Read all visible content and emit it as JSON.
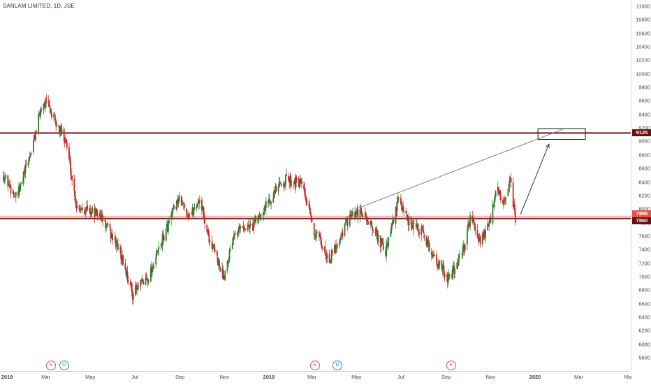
{
  "header": {
    "symbol_title": "SANLAM LIMITED, 1D, JSE"
  },
  "colors": {
    "up_candle": "#2e7d32",
    "down_candle": "#c62828",
    "resistance_line": "#7a1a1a",
    "support_line": "#7a1a1a",
    "label_9125": "#6b1111",
    "label_7895": "#e0564b",
    "label_7860": "#6b1111"
  },
  "price_axis": {
    "ticks": [
      "11000",
      "10800",
      "10600",
      "10400",
      "10200",
      "10000",
      "9800",
      "9600",
      "9400",
      "9200",
      "9000",
      "8800",
      "8600",
      "8400",
      "8200",
      "8000",
      "7800",
      "7600",
      "7400",
      "7200",
      "7000",
      "6800",
      "6600",
      "6400",
      "6200",
      "6000",
      "5800"
    ],
    "labels": [
      {
        "text": "9125",
        "price": 9125,
        "color": "#6b1111"
      },
      {
        "text": "7895",
        "price": 7895,
        "color": "#e0564b"
      },
      {
        "text": "7860",
        "price": 7860,
        "color": "#6b1111"
      }
    ]
  },
  "time_axis": {
    "ticks": [
      "2018",
      "Mar",
      "May",
      "Jul",
      "Sep",
      "Nov",
      "2019",
      "Mar",
      "May",
      "Jul",
      "Sep",
      "Nov",
      "2020",
      "Mar",
      "Ma"
    ]
  },
  "events": [
    {
      "type": "E",
      "icon": "earnings-icon"
    },
    {
      "type": "D",
      "icon": "dividend-icon"
    },
    {
      "type": "E",
      "icon": "earnings-icon"
    },
    {
      "type": "D",
      "icon": "dividend-icon"
    },
    {
      "type": "E",
      "icon": "earnings-icon"
    }
  ],
  "chart_data": {
    "type": "candlestick",
    "title": "SANLAM LIMITED, 1D, JSE",
    "ylim": [
      5800,
      11000
    ],
    "horizontal_levels": [
      9125,
      7895,
      7860
    ],
    "price_path_keypoints": [
      [
        "2018-01-02",
        8500
      ],
      [
        "2018-01-20",
        8150
      ],
      [
        "2018-02-10",
        8900
      ],
      [
        "2018-02-25",
        9600
      ],
      [
        "2018-03-05",
        9500
      ],
      [
        "2018-03-15",
        9250
      ],
      [
        "2018-03-28",
        9050
      ],
      [
        "2018-04-12",
        8050
      ],
      [
        "2018-04-25",
        8000
      ],
      [
        "2018-05-15",
        7900
      ],
      [
        "2018-06-10",
        7400
      ],
      [
        "2018-06-28",
        6750
      ],
      [
        "2018-07-20",
        7000
      ],
      [
        "2018-08-10",
        7600
      ],
      [
        "2018-08-30",
        8150
      ],
      [
        "2018-09-15",
        7900
      ],
      [
        "2018-09-28",
        8150
      ],
      [
        "2018-10-10",
        7600
      ],
      [
        "2018-10-31",
        7000
      ],
      [
        "2018-11-15",
        7700
      ],
      [
        "2018-12-10",
        7750
      ],
      [
        "2019-01-05",
        8200
      ],
      [
        "2019-01-25",
        8450
      ],
      [
        "2019-02-15",
        8350
      ],
      [
        "2019-03-05",
        7650
      ],
      [
        "2019-03-25",
        7250
      ],
      [
        "2019-04-20",
        7850
      ],
      [
        "2019-05-08",
        7950
      ],
      [
        "2019-05-25",
        7700
      ],
      [
        "2019-06-10",
        7350
      ],
      [
        "2019-06-28",
        8150
      ],
      [
        "2019-07-10",
        7850
      ],
      [
        "2019-07-30",
        7650
      ],
      [
        "2019-08-15",
        7300
      ],
      [
        "2019-09-05",
        6950
      ],
      [
        "2019-09-25",
        7400
      ],
      [
        "2019-10-05",
        7950
      ],
      [
        "2019-10-15",
        7500
      ],
      [
        "2019-10-30",
        7750
      ],
      [
        "2019-11-10",
        8300
      ],
      [
        "2019-11-20",
        8050
      ],
      [
        "2019-11-28",
        8400
      ],
      [
        "2019-12-05",
        7860
      ]
    ],
    "annotations": {
      "target_box_price_range": [
        9030,
        9190
      ],
      "trendline_from": [
        "2019-04-30",
        8000
      ],
      "trendline_to": [
        "2020-02-08",
        9180
      ]
    }
  }
}
